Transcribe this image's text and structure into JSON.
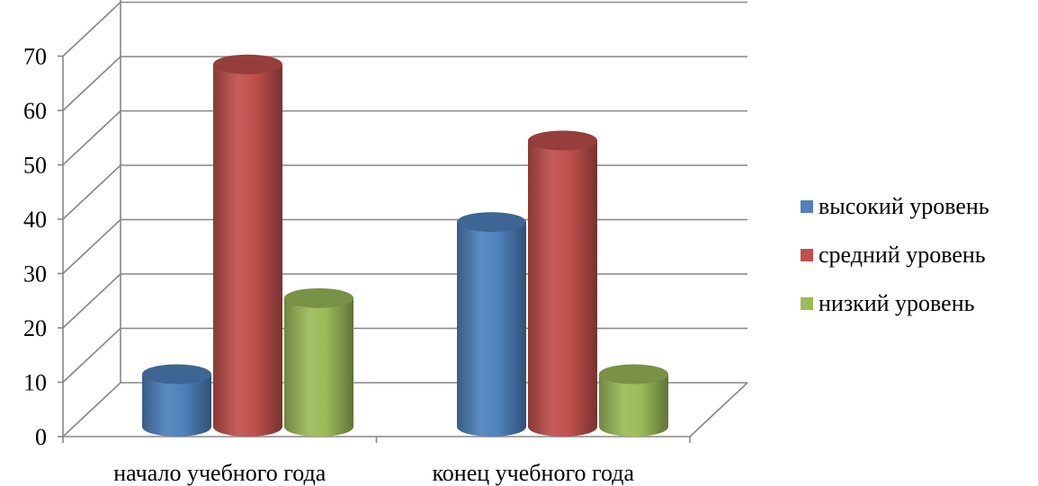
{
  "chart_data": {
    "type": "bar",
    "categories": [
      "начало учебного года",
      "конец учебного года"
    ],
    "series": [
      {
        "name": "высокий уровень",
        "values": [
          9,
          37
        ],
        "color": "#4F81BD"
      },
      {
        "name": "средний уровень",
        "values": [
          66,
          52
        ],
        "color": "#C0504D"
      },
      {
        "name": "низкий уровень",
        "values": [
          23,
          9
        ],
        "color": "#9BBB59"
      }
    ],
    "ylim": [
      0,
      70
    ],
    "yticks": [
      "0",
      "10",
      "20",
      "30",
      "40",
      "50",
      "60",
      "70"
    ],
    "grid": true,
    "legend_position": "right",
    "style": "3d-cylinder"
  }
}
